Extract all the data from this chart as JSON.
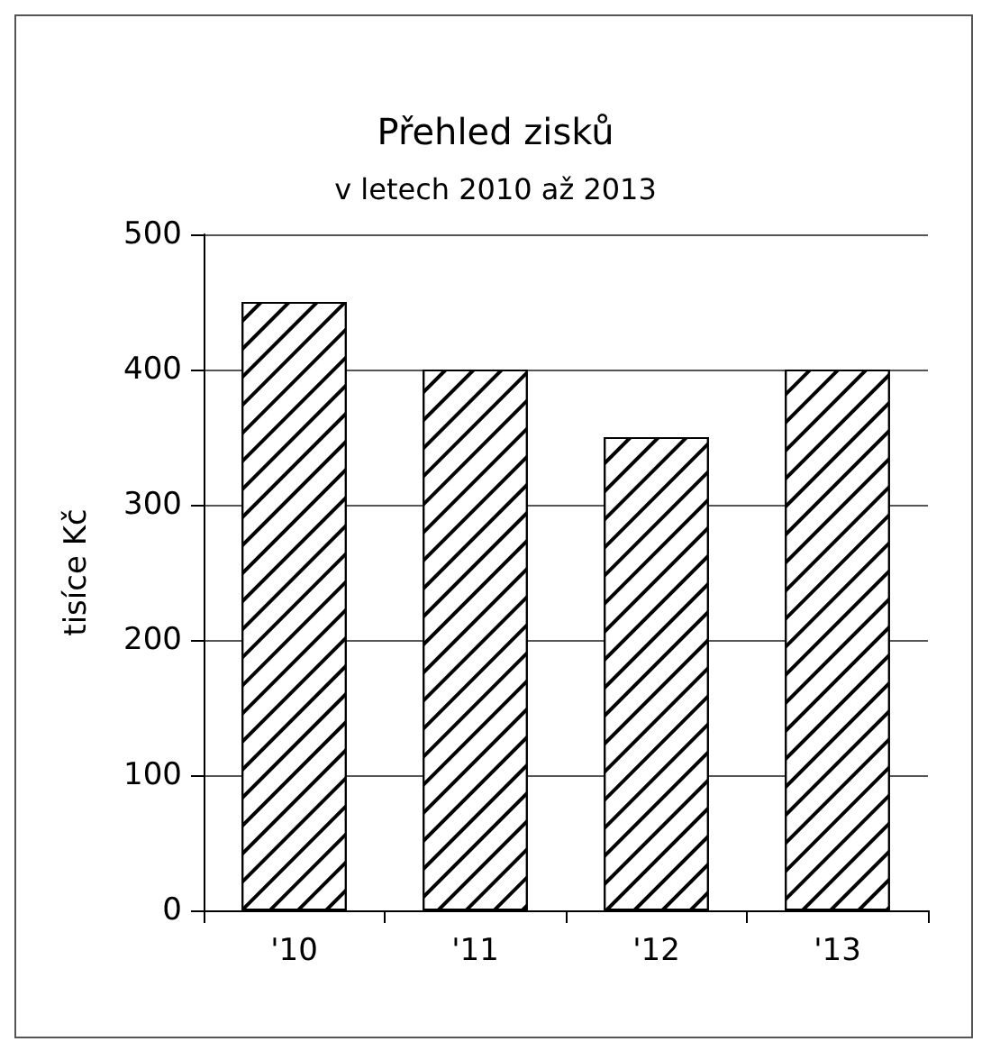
{
  "chart_data": {
    "type": "bar",
    "title": "Přehled zisků",
    "subtitle": "v letech 2010 až 2013",
    "ylabel": "tisíce Kč",
    "categories": [
      "'10",
      "'11",
      "'12",
      "'13"
    ],
    "values": [
      450,
      400,
      350,
      400
    ],
    "color": "#ffffff",
    "ylim": [
      0,
      500
    ],
    "yticks": [
      0,
      100,
      200,
      300,
      400,
      500
    ],
    "grid": "y"
  }
}
